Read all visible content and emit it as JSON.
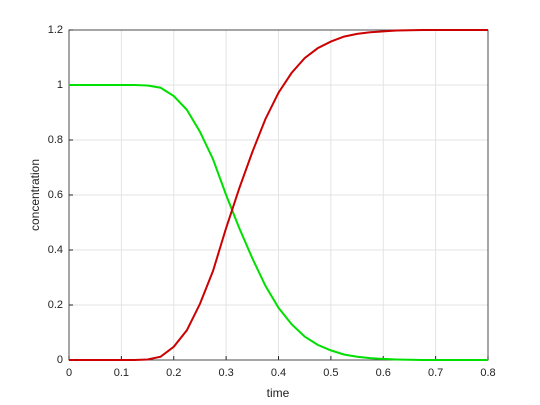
{
  "chart_data": {
    "type": "line",
    "xlabel": "time",
    "ylabel": "concentration",
    "x": [
      0,
      0.025,
      0.05,
      0.075,
      0.1,
      0.125,
      0.15,
      0.175,
      0.2,
      0.225,
      0.25,
      0.275,
      0.3,
      0.325,
      0.35,
      0.375,
      0.4,
      0.425,
      0.45,
      0.475,
      0.5,
      0.525,
      0.55,
      0.575,
      0.6,
      0.625,
      0.65,
      0.675,
      0.7,
      0.725,
      0.75,
      0.775,
      0.8
    ],
    "series": [
      {
        "color": "#00e000",
        "values": [
          1,
          1,
          1,
          1,
          1,
          1,
          0.998,
          0.99,
          0.96,
          0.91,
          0.83,
          0.73,
          0.6,
          0.48,
          0.37,
          0.27,
          0.19,
          0.13,
          0.085,
          0.055,
          0.035,
          0.02,
          0.012,
          0.007,
          0.004,
          0.002,
          0.001,
          0,
          0,
          0,
          0,
          0,
          0
        ]
      },
      {
        "color": "#cc0000",
        "values": [
          0,
          0,
          0,
          0,
          0,
          0,
          0.002,
          0.012,
          0.048,
          0.108,
          0.204,
          0.324,
          0.48,
          0.624,
          0.756,
          0.876,
          0.972,
          1.044,
          1.098,
          1.134,
          1.158,
          1.176,
          1.186,
          1.192,
          1.195,
          1.198,
          1.199,
          1.2,
          1.2,
          1.2,
          1.2,
          1.2,
          1.2
        ]
      }
    ],
    "xlim": [
      0,
      0.8
    ],
    "xticks": [
      0,
      0.1,
      0.2,
      0.3,
      0.4,
      0.5,
      0.6,
      0.7,
      0.8
    ],
    "ylim": [
      0,
      1.2
    ],
    "yticks": [
      0,
      0.2,
      0.4,
      0.6,
      0.8,
      1,
      1.2
    ],
    "grid": true
  }
}
